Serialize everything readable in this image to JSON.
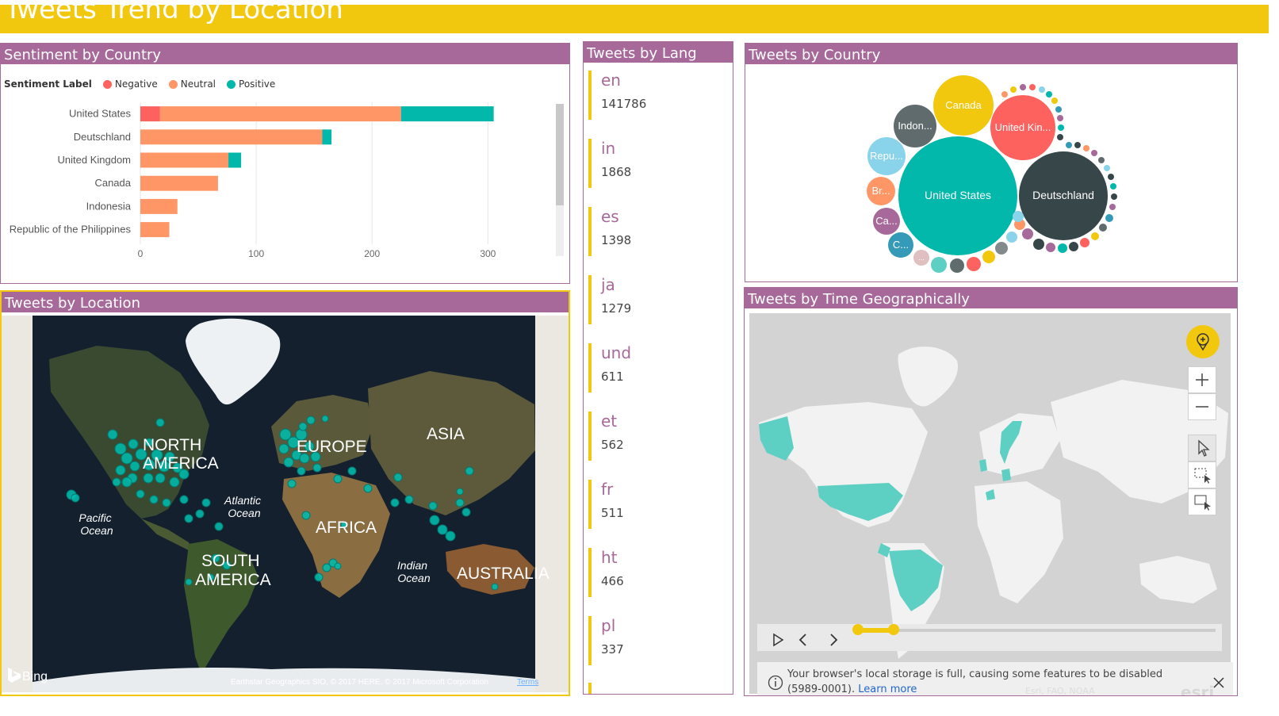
{
  "page": {
    "title": "Tweets Trend by Location"
  },
  "colors": {
    "banner": "#f2c80f",
    "panel_header": "#a66999",
    "negative": "#fd625e",
    "neutral": "#fe9666",
    "positive": "#01b8aa",
    "map_marker": "#01b8aa",
    "highlight_countries": "#5ecfc3"
  },
  "sentiment_panel": {
    "title": "Sentiment by Country",
    "legend_title": "Sentiment Label",
    "legend": [
      {
        "label": "Negative",
        "color": "#fd625e"
      },
      {
        "label": "Neutral",
        "color": "#fe9666"
      },
      {
        "label": "Positive",
        "color": "#01b8aa"
      }
    ]
  },
  "chart_data": {
    "type": "bar",
    "orientation": "horizontal",
    "stacked": true,
    "categories": [
      "United States",
      "Deutschland",
      "United Kingdom",
      "Canada",
      "Indonesia",
      "Republic of the Philippines"
    ],
    "series": [
      {
        "name": "Negative",
        "values": [
          17,
          0,
          0,
          0,
          0,
          0
        ]
      },
      {
        "name": "Neutral",
        "values": [
          208,
          157,
          76,
          67,
          32,
          25
        ]
      },
      {
        "name": "Positive",
        "values": [
          80,
          8,
          11,
          0,
          0,
          0
        ]
      }
    ],
    "xticks": [
      "0",
      "100",
      "200",
      "300"
    ],
    "xlim": [
      0,
      360
    ],
    "grid": true,
    "legend_position": "top-left"
  },
  "lang_panel": {
    "title": "Tweets by Lang",
    "items": [
      {
        "code": "en",
        "count": "141786"
      },
      {
        "code": "in",
        "count": "1868"
      },
      {
        "code": "es",
        "count": "1398"
      },
      {
        "code": "ja",
        "count": "1279"
      },
      {
        "code": "und",
        "count": "611"
      },
      {
        "code": "et",
        "count": "562"
      },
      {
        "code": "fr",
        "count": "511"
      },
      {
        "code": "ht",
        "count": "466"
      },
      {
        "code": "pl",
        "count": "337"
      }
    ]
  },
  "country_panel": {
    "title": "Tweets by Country",
    "bubbles": [
      {
        "label": "United States",
        "color": "#01b8aa"
      },
      {
        "label": "Deutschland",
        "color": "#374649"
      },
      {
        "label": "United Kin...",
        "color": "#fd625e"
      },
      {
        "label": "Canada",
        "color": "#f2c80f"
      },
      {
        "label": "Indon...",
        "color": "#5f6b6d"
      },
      {
        "label": "Repu...",
        "color": "#8ad4eb"
      },
      {
        "label": "Br...",
        "color": "#fe9666"
      },
      {
        "label": "Ca...",
        "color": "#a66999"
      },
      {
        "label": "C...",
        "color": "#3599b8"
      },
      {
        "label": "...",
        "color": "#dfbfbf"
      }
    ]
  },
  "location_panel": {
    "title": "Tweets by Location",
    "labels": {
      "north_america_1": "NORTH",
      "north_america_2": "AMERICA",
      "europe": "EUROPE",
      "asia": "ASIA",
      "africa": "AFRICA",
      "south_america_1": "SOUTH",
      "south_america_2": "AMERICA",
      "australia": "AUSTRALIA",
      "atlantic_1": "Atlantic",
      "atlantic_2": "Ocean",
      "pacific_1": "Pacific",
      "pacific_2": "Ocean",
      "indian_1": "Indian",
      "indian_2": "Ocean"
    },
    "provider": "Bing",
    "attribution": "Earthstar Geographics SIO, © 2017 HERE, © 2017 Microsoft Corporation",
    "terms": "Terms"
  },
  "time_panel": {
    "title": "Tweets by Time Geographically",
    "notice_line1": "Your browser's local storage is full, causing some features to be disabled",
    "notice_code": "(5989-0001).",
    "notice_link": "Learn more",
    "attribution": "Esri, FAO, NOAA",
    "brand": "esri"
  }
}
